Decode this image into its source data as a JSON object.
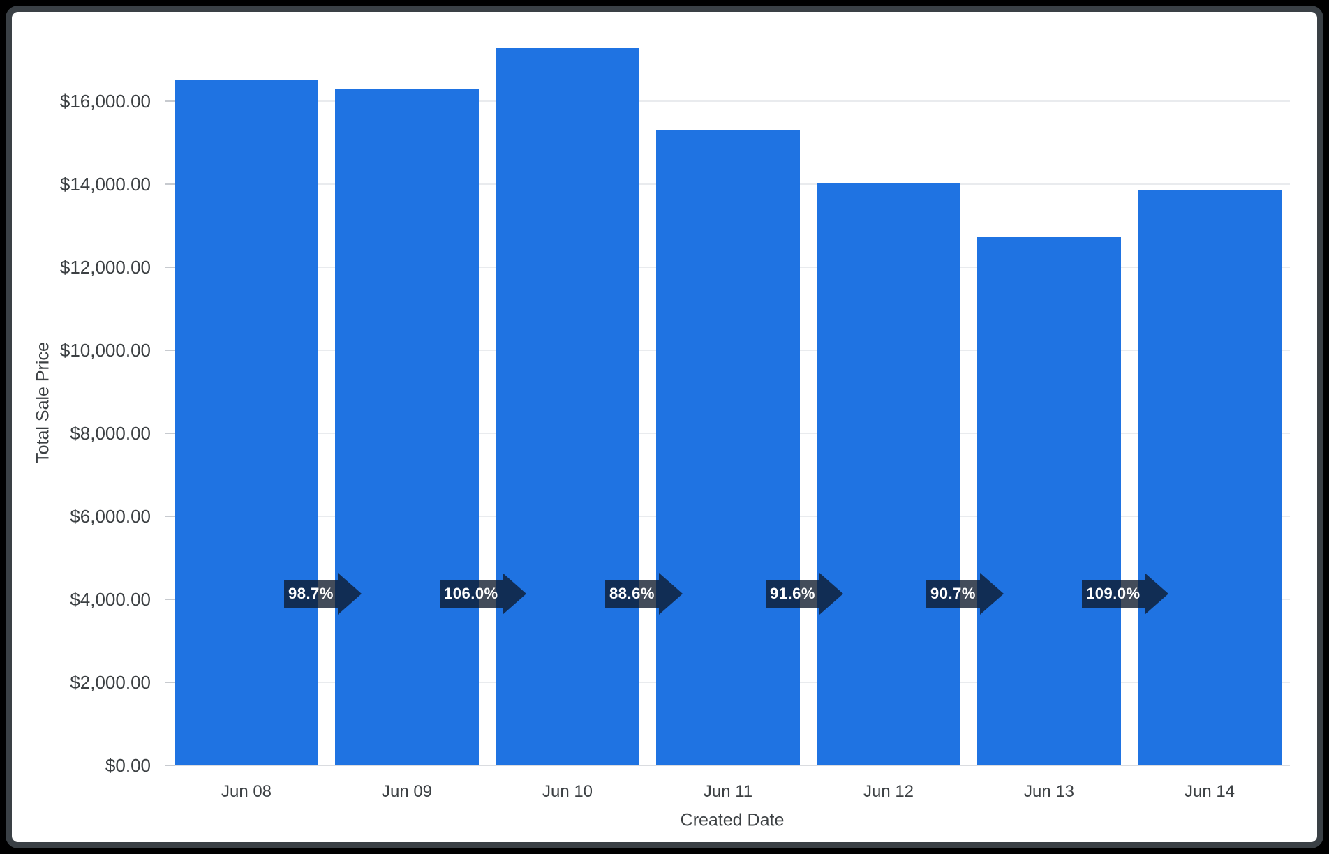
{
  "frame": {
    "outer_background": "#000000",
    "border_color": "#3a4045",
    "card_background": "#ffffff"
  },
  "chart_data": {
    "type": "bar",
    "xlabel": "Created Date",
    "ylabel": "Total Sale Price",
    "categories": [
      "Jun 08",
      "Jun 09",
      "Jun 10",
      "Jun 11",
      "Jun 12",
      "Jun 13",
      "Jun 14"
    ],
    "values": [
      16520,
      16300,
      17280,
      15310,
      14020,
      12720,
      13870
    ],
    "growth_badges": [
      "98.7%",
      "106.0%",
      "88.6%",
      "91.6%",
      "90.7%",
      "109.0%"
    ],
    "y_ticks": [
      {
        "value": 16000,
        "label": "$16,000.00"
      },
      {
        "value": 14000,
        "label": "$14,000.00"
      },
      {
        "value": 12000,
        "label": "$12,000.00"
      },
      {
        "value": 10000,
        "label": "$10,000.00"
      },
      {
        "value": 8000,
        "label": "$8,000.00"
      },
      {
        "value": 6000,
        "label": "$6,000.00"
      },
      {
        "value": 4000,
        "label": "$4,000.00"
      },
      {
        "value": 2000,
        "label": "$2,000.00"
      },
      {
        "value": 0,
        "label": "$0.00"
      }
    ],
    "ylim": [
      0,
      17480
    ],
    "grid": true,
    "legend_position": "none",
    "colors": {
      "bar": "#1f73e2",
      "badge": "rgba(14,25,43,0.78)",
      "badge_text": "#ffffff",
      "axis_text": "#3c4043",
      "gridline": "#e9ebee",
      "tick_dash": "#c7cacf",
      "baseline": "#dadce0"
    }
  }
}
